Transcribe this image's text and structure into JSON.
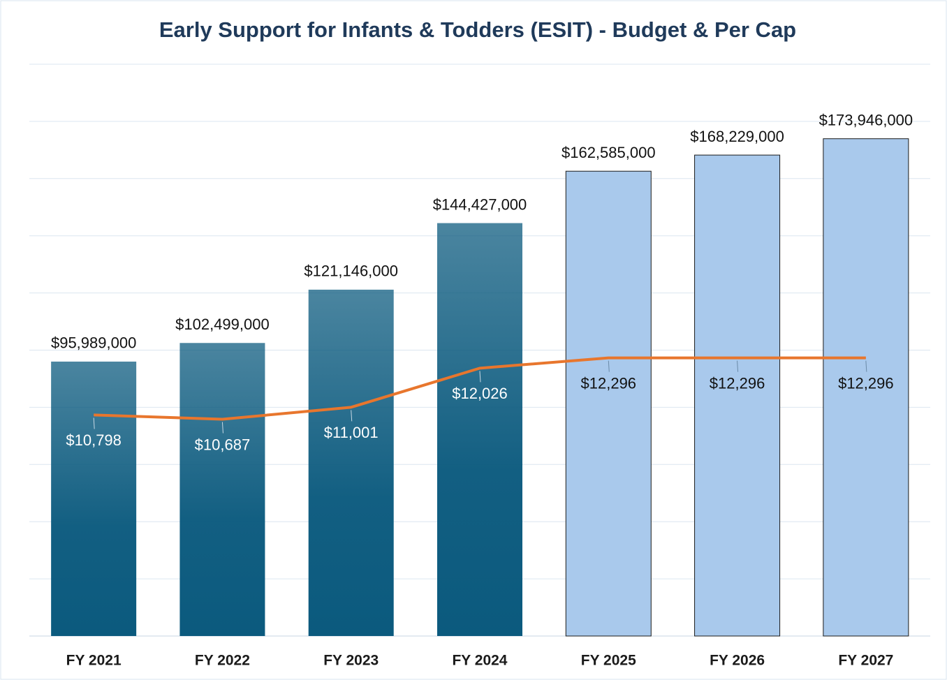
{
  "chart_data": {
    "type": "bar_line",
    "title": "Early Support for Infants & Todders (ESIT) - Budget & Per Cap",
    "categories": [
      "FY 2021",
      "FY 2022",
      "FY 2023",
      "FY 2024",
      "FY 2025",
      "FY 2026",
      "FY 2027"
    ],
    "series": [
      {
        "type": "bar",
        "colors": [
          "#0b5a7e",
          "#0b5a7e",
          "#0b5a7e",
          "#0b5a7e",
          "#a9c9ec",
          "#a9c9ec",
          "#a9c9ec"
        ],
        "values": [
          95989000,
          102499000,
          121146000,
          144427000,
          162585000,
          168229000,
          173946000
        ],
        "value_labels": [
          "$95,989,000",
          "$102,499,000",
          "$121,146,000",
          "$144,427,000",
          "$162,585,000",
          "$168,229,000",
          "$173,946,000"
        ]
      },
      {
        "type": "line",
        "axis": "y2",
        "color": "#e8762d",
        "values": [
          10798,
          10687,
          11001,
          12026,
          12296,
          12296,
          12296
        ],
        "value_labels": [
          "$10,798",
          "$10,687",
          "$11,001",
          "$12,026",
          "$12,296",
          "$12,296",
          "$12,296"
        ]
      }
    ],
    "ylim": [
      0,
      200000000
    ],
    "yticks": [
      0,
      20000000,
      40000000,
      60000000,
      80000000,
      100000000,
      120000000,
      140000000,
      160000000,
      180000000,
      200000000
    ],
    "y2lim": [
      5000,
      20000
    ],
    "grid": true
  }
}
